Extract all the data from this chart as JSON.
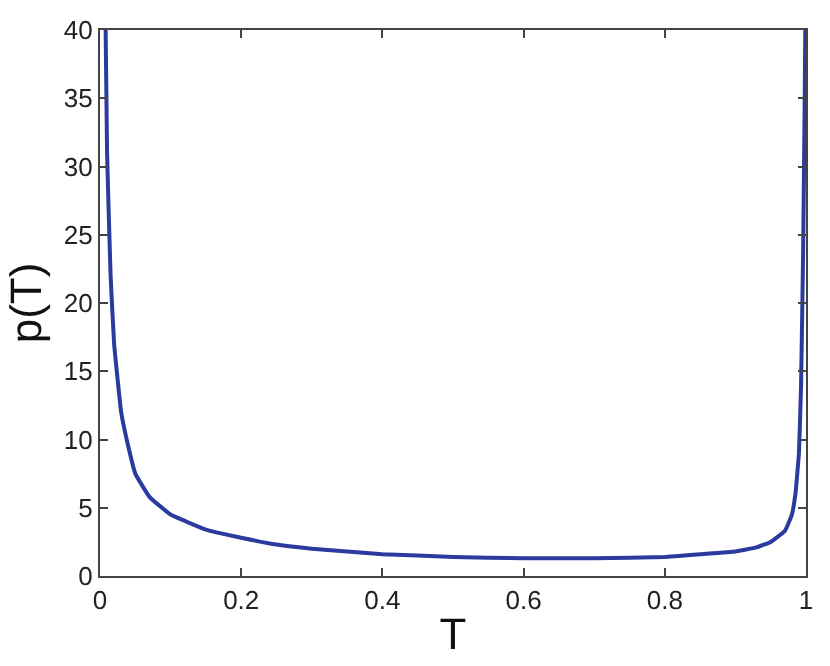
{
  "chart_data": {
    "type": "line",
    "xlabel": "T",
    "ylabel": "p(T)",
    "x": [
      0.008,
      0.01,
      0.015,
      0.02,
      0.03,
      0.04,
      0.05,
      0.07,
      0.1,
      0.15,
      0.2,
      0.25,
      0.3,
      0.4,
      0.5,
      0.6,
      0.7,
      0.8,
      0.85,
      0.9,
      0.93,
      0.95,
      0.97,
      0.98,
      0.985,
      0.99,
      0.993,
      0.996,
      0.998,
      0.999
    ],
    "series": [
      {
        "color": "#2b3a9e",
        "values": [
          40,
          31,
          22,
          17,
          12,
          9.5,
          7.5,
          5.8,
          4.5,
          3.4,
          2.8,
          2.3,
          2.0,
          1.6,
          1.4,
          1.3,
          1.3,
          1.4,
          1.6,
          1.8,
          2.1,
          2.5,
          3.3,
          4.5,
          6,
          9,
          14,
          24,
          34,
          40
        ]
      }
    ],
    "xlim": [
      0,
      1
    ],
    "ylim": [
      0,
      40
    ],
    "xticks": [
      0,
      0.2,
      0.4,
      0.6,
      0.8,
      1
    ],
    "yticks": [
      0,
      5,
      10,
      15,
      20,
      25,
      30,
      35,
      40
    ]
  }
}
